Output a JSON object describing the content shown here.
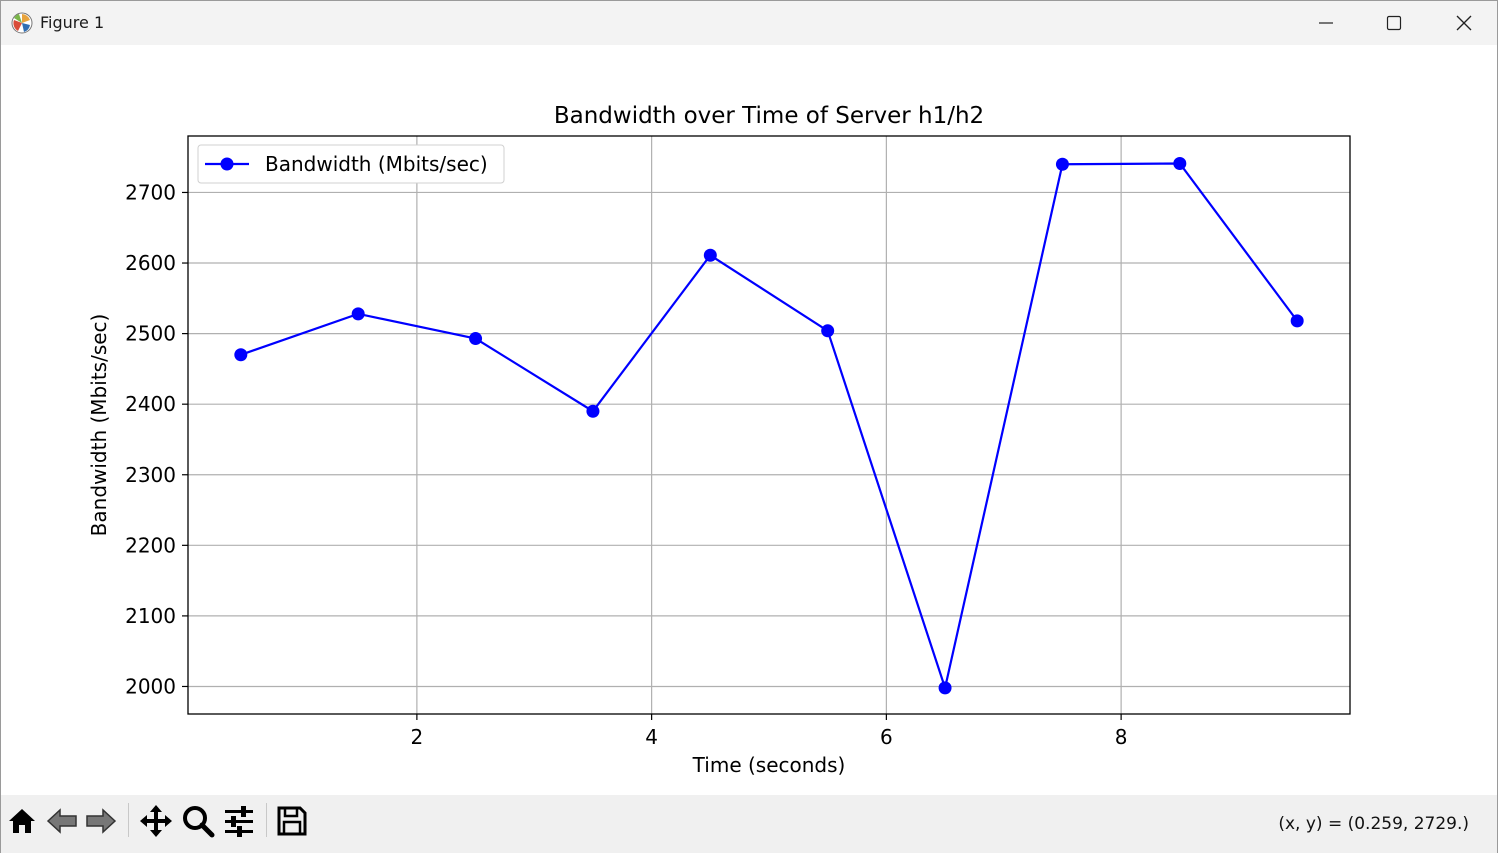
{
  "window": {
    "title": "Figure 1",
    "icons": [
      "matplotlib-icon",
      "minimize-icon",
      "maximize-icon",
      "close-icon"
    ]
  },
  "chart_data": {
    "type": "line",
    "title": "Bandwidth over Time of Server h1/h2",
    "xlabel": "Time (seconds)",
    "ylabel": "Bandwidth (Mbits/sec)",
    "x": [
      0.5,
      1.5,
      2.5,
      3.5,
      4.5,
      5.5,
      6.5,
      7.5,
      8.5,
      9.5
    ],
    "series": [
      {
        "name": "Bandwidth (Mbits/sec)",
        "values": [
          2470,
          2528,
          2493,
          2390,
          2611,
          2504,
          1998,
          2740,
          2741,
          2518
        ],
        "color": "#0000ff",
        "marker": "circle"
      }
    ],
    "xlim": [
      0.05,
      9.95
    ],
    "ylim": [
      1961,
      2780
    ],
    "xticks": [
      2,
      4,
      6,
      8
    ],
    "yticks": [
      2000,
      2100,
      2200,
      2300,
      2400,
      2500,
      2600,
      2700
    ],
    "grid": true,
    "legend_position": "top-left"
  },
  "toolbar": {
    "icons": [
      "home-icon",
      "back-icon",
      "forward-icon",
      "pan-icon",
      "zoom-icon",
      "configure-icon",
      "save-icon"
    ],
    "coords": "(x, y) = (0.259, 2729.)"
  }
}
